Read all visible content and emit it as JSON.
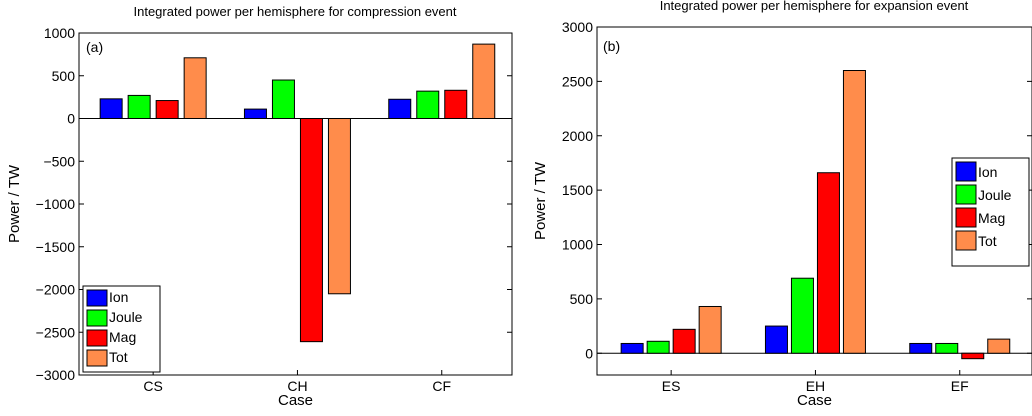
{
  "chart_data": [
    {
      "type": "bar",
      "panel_label": "(a)",
      "title": "Integrated power per hemisphere for compression event",
      "xlabel": "Case",
      "ylabel": "Power / TW",
      "categories": [
        "CS",
        "CH",
        "CF"
      ],
      "ylim": [
        -3000,
        1000
      ],
      "yticks": [
        -3000,
        -2500,
        -2000,
        -1500,
        -1000,
        -500,
        0,
        500,
        1000
      ],
      "series": [
        {
          "name": "Ion",
          "color": "#0000ff",
          "values": [
            230,
            110,
            225
          ]
        },
        {
          "name": "Joule",
          "color": "#00ff00",
          "values": [
            270,
            450,
            320
          ]
        },
        {
          "name": "Mag",
          "color": "#ff0000",
          "values": [
            210,
            -2610,
            330
          ]
        },
        {
          "name": "Tot",
          "color": "#ff8c4b",
          "values": [
            710,
            -2050,
            870
          ]
        }
      ],
      "legend_position": "bottom-left",
      "grid": false
    },
    {
      "type": "bar",
      "panel_label": "(b)",
      "title": "Integrated power per hemisphere for expansion event",
      "xlabel": "Case",
      "ylabel": "Power / TW",
      "categories": [
        "ES",
        "EH",
        "EF"
      ],
      "ylim": [
        -200,
        3000
      ],
      "yticks": [
        0,
        500,
        1000,
        1500,
        2000,
        2500,
        3000
      ],
      "series": [
        {
          "name": "Ion",
          "color": "#0000ff",
          "values": [
            90,
            250,
            90
          ]
        },
        {
          "name": "Joule",
          "color": "#00ff00",
          "values": [
            110,
            690,
            90
          ]
        },
        {
          "name": "Mag",
          "color": "#ff0000",
          "values": [
            220,
            1660,
            -50
          ]
        },
        {
          "name": "Tot",
          "color": "#ff8c4b",
          "values": [
            430,
            2600,
            130
          ]
        }
      ],
      "legend_position": "right",
      "grid": false
    }
  ]
}
